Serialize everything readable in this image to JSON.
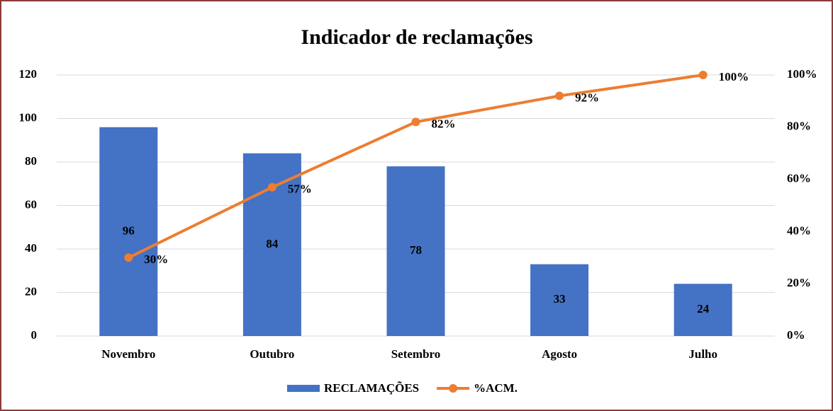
{
  "chart_data": {
    "type": "bar",
    "title": "Indicador de reclamações",
    "categories": [
      "Novembro",
      "Outubro",
      "Setembro",
      "Agosto",
      "Julho"
    ],
    "series": [
      {
        "name": "RECLAMAÇÕES",
        "type": "bar",
        "color": "#4472c4",
        "values": [
          96,
          84,
          78,
          33,
          24
        ]
      },
      {
        "name": "%ACM.",
        "type": "line",
        "axis": "y2",
        "color": "#ed7d31",
        "values": [
          30,
          57,
          82,
          92,
          100
        ],
        "value_labels": [
          "30%",
          "57%",
          "82%",
          "92%",
          "100%"
        ]
      }
    ],
    "ylim": [
      0,
      120
    ],
    "yticks": [
      0,
      20,
      40,
      60,
      80,
      100,
      120
    ],
    "y2lim": [
      0,
      100
    ],
    "y2ticks": [
      {
        "value": 0,
        "label": "0%"
      },
      {
        "value": 20,
        "label": "20%"
      },
      {
        "value": 40,
        "label": "40%"
      },
      {
        "value": 60,
        "label": "60%"
      },
      {
        "value": 80,
        "label": "80%"
      },
      {
        "value": 100,
        "label": "100%"
      }
    ],
    "grid": true,
    "legend": "bottom"
  }
}
